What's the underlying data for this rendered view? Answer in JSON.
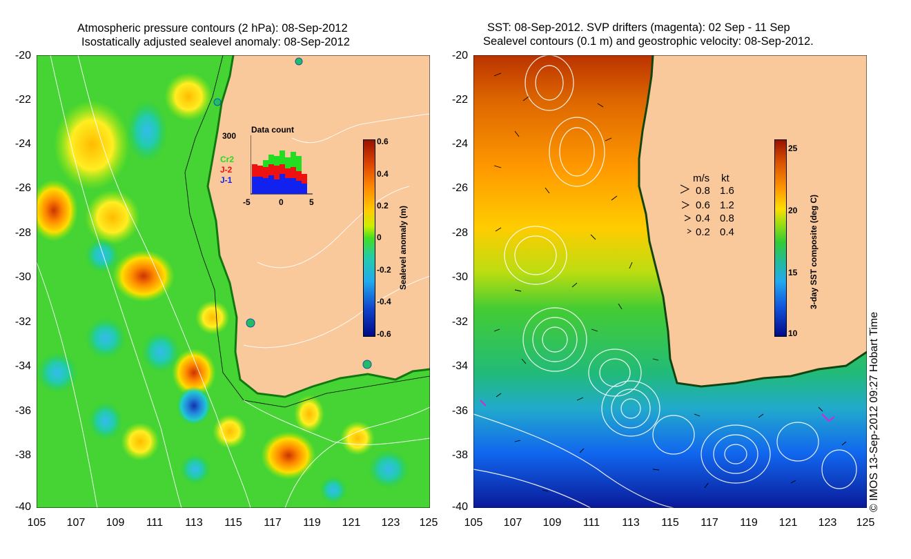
{
  "left_panel": {
    "title_line1": "Atmospheric pressure contours (2 hPa): 08-Sep-2012",
    "title_line2": "Isostatically adjusted sealevel anomaly: 08-Sep-2012",
    "y_ticks": [
      "-20",
      "-22",
      "-24",
      "-26",
      "-28",
      "-30",
      "-32",
      "-34",
      "-36",
      "-38",
      "-40"
    ],
    "x_ticks": [
      "105",
      "107",
      "109",
      "111",
      "113",
      "115",
      "117",
      "119",
      "121",
      "123",
      "125"
    ],
    "colorbar": {
      "label": "Sealevel anomaly (m)",
      "ticks": [
        "0.6",
        "0.4",
        "0.2",
        "0",
        "-0.2",
        "-0.4",
        "-0.6"
      ]
    },
    "histogram": {
      "title": "Data count",
      "y_max_label": "300",
      "x_labels": [
        "-5",
        "0",
        "5"
      ],
      "series_labels": [
        "Cr2",
        "J-2",
        "J-1"
      ],
      "series_colors": [
        "#22dd22",
        "#ee1111",
        "#1122ee"
      ]
    }
  },
  "right_panel": {
    "title_line1": "SST: 08-Sep-2012. SVP drifters (magenta): 02 Sep - 11 Sep",
    "title_line2": "Sealevel contours (0.1 m) and geostrophic velocity: 08-Sep-2012.",
    "y_ticks": [
      "-20",
      "-22",
      "-24",
      "-26",
      "-28",
      "-30",
      "-32",
      "-34",
      "-36",
      "-38",
      "-40"
    ],
    "x_ticks": [
      "105",
      "107",
      "109",
      "111",
      "113",
      "115",
      "117",
      "119",
      "121",
      "123",
      "125"
    ],
    "colorbar": {
      "label": "3-day SST composite (deg C)",
      "ticks": [
        "25",
        "20",
        "15",
        "10"
      ]
    },
    "velocity_legend": {
      "header_ms": "m/s",
      "header_kt": "kt",
      "rows": [
        {
          "ms": "0.8",
          "kt": "1.6"
        },
        {
          "ms": "0.6",
          "kt": "1.2"
        },
        {
          "ms": "0.4",
          "kt": "0.8"
        },
        {
          "ms": "0.2",
          "kt": "0.4"
        }
      ]
    }
  },
  "credit": "© IMOS 13-Sep-2012 09:27 Hobart Time",
  "colors": {
    "land": "#f9c89b",
    "sla_green": "#22cc33",
    "sst_orange": "#ff9900"
  }
}
